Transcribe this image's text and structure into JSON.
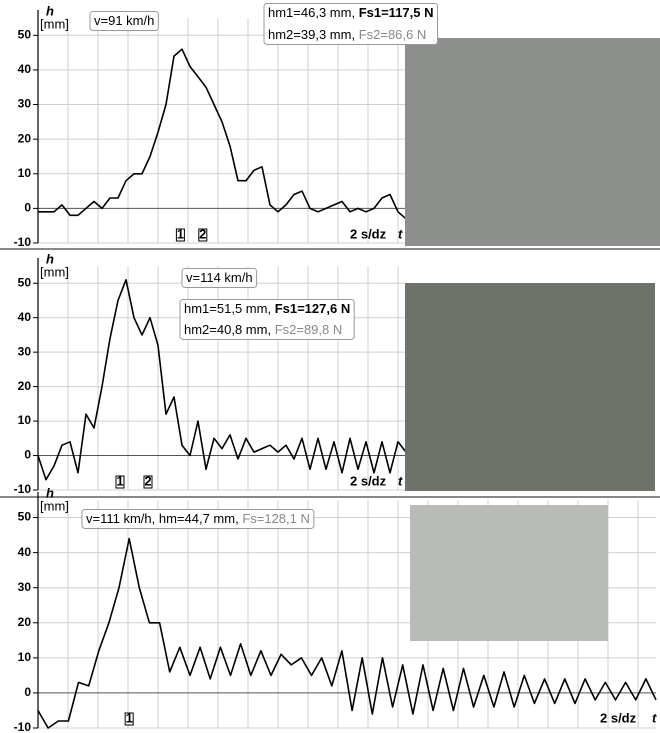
{
  "chart_data": [
    {
      "type": "line",
      "y_label": "h",
      "y_unit": "[mm]",
      "x_scale": "2 s/dz",
      "x_label": "t",
      "ylim": [
        -10,
        55
      ],
      "yticks": [
        -10,
        0,
        10,
        20,
        30,
        40,
        50
      ],
      "grid": true,
      "color": "#000000",
      "values": [
        -1,
        -1,
        -1,
        1,
        -2,
        -2,
        0,
        2,
        0,
        3,
        3,
        8,
        10,
        10,
        15,
        22,
        30,
        44,
        46,
        41,
        38,
        35,
        30,
        25,
        18,
        8,
        8,
        11,
        12,
        1,
        -1,
        1,
        4,
        5,
        0,
        -1,
        0,
        1,
        2,
        -1,
        0,
        -1,
        0,
        3,
        4,
        -1,
        -3
      ],
      "markers": [
        {
          "x": 17.8,
          "label": "1"
        },
        {
          "x": 20.6,
          "label": "2"
        }
      ],
      "annotations": [
        [
          [
            {
              "text": "v=91 km/h"
            }
          ]
        ],
        [
          [
            {
              "text": "hm1=46,3 mm,  "
            },
            {
              "text": "Fs1=117,5 N",
              "style": "bold"
            }
          ],
          [
            {
              "text": "hm2=39,3 mm,  "
            },
            {
              "text": "Fs2=86,6 N",
              "style": "gray"
            }
          ]
        ]
      ]
    },
    {
      "type": "line",
      "y_label": "h",
      "y_unit": "[mm]",
      "x_scale": "2 s/dz",
      "x_label": "t",
      "ylim": [
        -10,
        55
      ],
      "yticks": [
        -10,
        0,
        10,
        20,
        30,
        40,
        50
      ],
      "grid": true,
      "color": "#000000",
      "values": [
        0,
        -7,
        -3,
        3,
        4,
        -5,
        12,
        8,
        20,
        34,
        45,
        51,
        40,
        35,
        40,
        32,
        12,
        17,
        3,
        0,
        10,
        -4,
        5,
        2,
        6,
        -1,
        5,
        1,
        2,
        3,
        1,
        3,
        -1,
        5,
        -4,
        5,
        -4,
        4,
        -5,
        5,
        -4,
        4,
        -5,
        4,
        -5,
        4,
        1
      ],
      "markers": [
        {
          "x": 10.25,
          "label": "1"
        },
        {
          "x": 13.75,
          "label": "2"
        }
      ],
      "annotations": [
        [
          [
            {
              "text": "v=114 km/h"
            }
          ]
        ],
        [
          [
            {
              "text": "hm1=51,5 mm,  "
            },
            {
              "text": "Fs1=127,6 N",
              "style": "bold"
            }
          ],
          [
            {
              "text": "hm2=40,8 mm,  "
            },
            {
              "text": "Fs2=89,8 N",
              "style": "gray"
            }
          ]
        ]
      ]
    },
    {
      "type": "line",
      "y_label": "h",
      "y_unit": "[mm]",
      "x_scale": "2 s/dz",
      "x_label": "t",
      "ylim": [
        -10,
        55
      ],
      "yticks": [
        -10,
        0,
        10,
        20,
        30,
        40,
        50
      ],
      "grid": true,
      "color": "#000000",
      "values": [
        -5,
        -10,
        -8,
        -8,
        3,
        2,
        12,
        20,
        30,
        44,
        30,
        20,
        20,
        6,
        13,
        5,
        13,
        4,
        13,
        5,
        14,
        5,
        12,
        5,
        11,
        8,
        10,
        5,
        10,
        2,
        12,
        -5,
        10,
        -6,
        10,
        -4,
        8,
        -6,
        8,
        -5,
        7,
        -5,
        7,
        -4,
        5,
        -4,
        6,
        -4,
        5,
        -3,
        4,
        -3,
        4,
        -3,
        4,
        -2,
        3,
        -2,
        3,
        -2,
        4,
        -2
      ],
      "markers": [
        {
          "x": 9,
          "label": "1"
        }
      ],
      "annotations": [
        [
          [
            {
              "text": "v=111 km/h,  hm=44,7 mm,  "
            },
            {
              "text": "Fs=128,1 N",
              "style": "gray"
            }
          ]
        ]
      ]
    }
  ]
}
